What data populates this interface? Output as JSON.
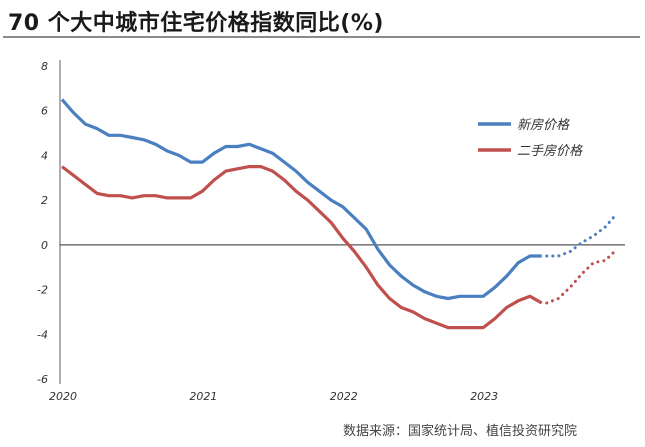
{
  "title": "70 个大中城市住宅价格指数同比(%)",
  "source": "数据来源：国家统计局、植信投资研究院",
  "chart_data": {
    "type": "line",
    "title": "70 个大中城市住宅价格指数同比(%)",
    "xlabel": "",
    "ylabel": "",
    "ylim": [
      -6,
      8
    ],
    "yticks": [
      "8",
      "6",
      "4",
      "2",
      "0",
      "-2",
      "-4",
      "-6"
    ],
    "ytick_values": [
      8,
      6,
      4,
      2,
      0,
      -2,
      -4,
      -6
    ],
    "xticks": [
      "2020",
      "2021",
      "2022",
      "2023"
    ],
    "legend_position": "upper-right",
    "grid": false,
    "x_start": "2020-01",
    "x_step": "month",
    "series": [
      {
        "name": "新房价格",
        "color": "#4a7fc0",
        "values": [
          6.5,
          5.9,
          5.4,
          5.2,
          4.9,
          4.9,
          4.8,
          4.7,
          4.5,
          4.2,
          4.0,
          3.7,
          3.7,
          4.1,
          4.4,
          4.4,
          4.5,
          4.3,
          4.1,
          3.7,
          3.3,
          2.8,
          2.4,
          2.0,
          1.7,
          1.2,
          0.7,
          -0.2,
          -0.9,
          -1.4,
          -1.8,
          -2.1,
          -2.3,
          -2.4,
          -2.3,
          -2.3,
          -2.3,
          -1.9,
          -1.4,
          -0.8,
          -0.5,
          -0.5
        ],
        "forecast_dotted": [
          -0.5,
          -0.5,
          -0.3,
          0.1,
          0.4,
          0.8,
          1.4
        ]
      },
      {
        "name": "二手房价格",
        "color": "#c0504d",
        "values": [
          3.5,
          3.1,
          2.7,
          2.3,
          2.2,
          2.2,
          2.1,
          2.2,
          2.2,
          2.1,
          2.1,
          2.1,
          2.4,
          2.9,
          3.3,
          3.4,
          3.5,
          3.5,
          3.3,
          2.9,
          2.4,
          2.0,
          1.5,
          1.0,
          0.3,
          -0.3,
          -1.0,
          -1.8,
          -2.4,
          -2.8,
          -3.0,
          -3.3,
          -3.5,
          -3.7,
          -3.7,
          -3.7,
          -3.7,
          -3.3,
          -2.8,
          -2.5,
          -2.3,
          -2.6
        ],
        "forecast_dotted": [
          -2.6,
          -2.4,
          -1.9,
          -1.3,
          -0.8,
          -0.7,
          -0.2
        ]
      }
    ]
  }
}
